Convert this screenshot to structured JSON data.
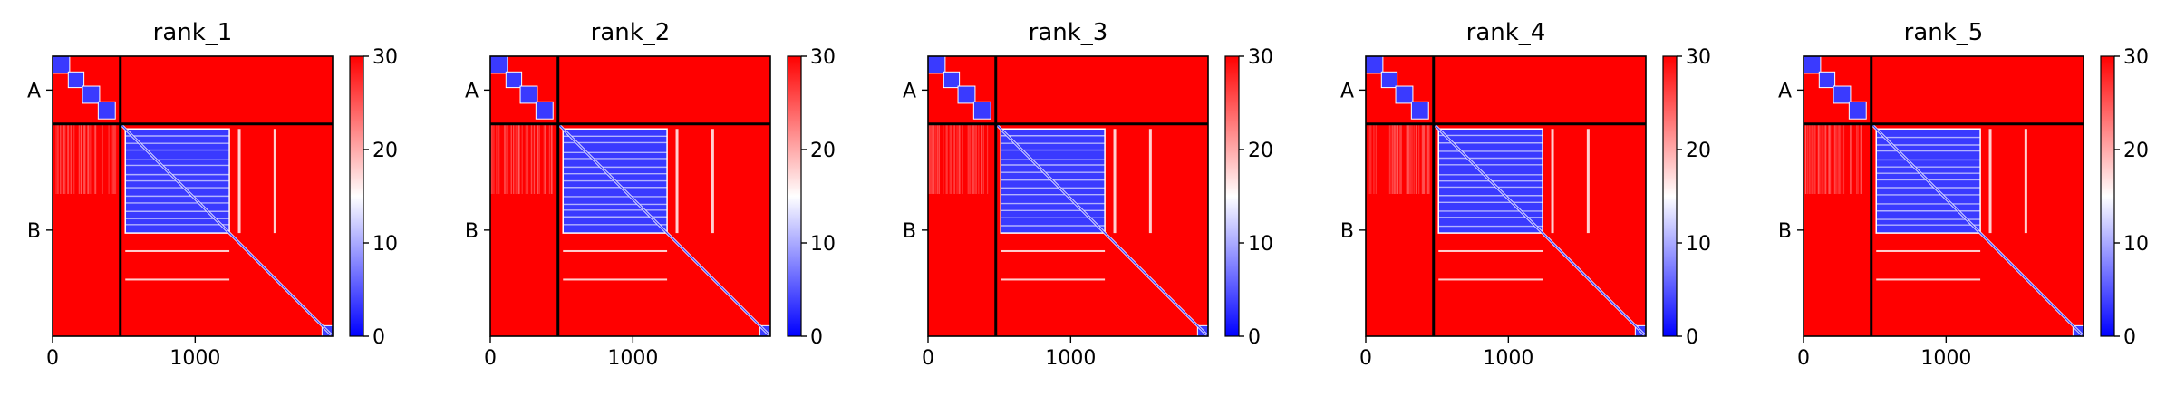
{
  "figure": {
    "colorbar": {
      "low_color": "#0000ff",
      "mid_color": "#ffffff",
      "high_color": "#ff0000",
      "range": [
        0,
        30
      ],
      "ticks": [
        0,
        10,
        20,
        30
      ]
    },
    "frame_color": "#000000",
    "divider_color": "#000000"
  },
  "chart_data": [
    {
      "type": "heatmap",
      "title": "rank_1",
      "xlabel": "",
      "ylabel": "",
      "x_ticks": [
        0,
        1000
      ],
      "xlim": [
        0,
        1964
      ],
      "y_tick_labels": [
        "A",
        "B"
      ],
      "chain_boundary": 475,
      "chains": [
        {
          "name": "A",
          "start": 0,
          "end": 475
        },
        {
          "name": "B",
          "start": 475,
          "end": 1964
        }
      ],
      "colorbar_ticks": [
        0,
        10,
        20,
        30
      ],
      "value_range": [
        0,
        30
      ],
      "colormap": "bwr",
      "low_error_blocks": [
        {
          "start": 0,
          "end": 120
        },
        {
          "start": 110,
          "end": 220
        },
        {
          "start": 210,
          "end": 330
        },
        {
          "start": 320,
          "end": 440
        },
        {
          "start": 510,
          "end": 1240
        },
        {
          "start": 1890,
          "end": 1964
        }
      ],
      "diagonal_band": [
        475,
        1964
      ],
      "background_value": 30
    },
    {
      "type": "heatmap",
      "title": "rank_2",
      "xlabel": "",
      "ylabel": "",
      "x_ticks": [
        0,
        1000
      ],
      "xlim": [
        0,
        1964
      ],
      "y_tick_labels": [
        "A",
        "B"
      ],
      "chain_boundary": 475,
      "chains": [
        {
          "name": "A",
          "start": 0,
          "end": 475
        },
        {
          "name": "B",
          "start": 475,
          "end": 1964
        }
      ],
      "colorbar_ticks": [
        0,
        10,
        20,
        30
      ],
      "value_range": [
        0,
        30
      ],
      "colormap": "bwr",
      "low_error_blocks": [
        {
          "start": 0,
          "end": 120
        },
        {
          "start": 110,
          "end": 220
        },
        {
          "start": 210,
          "end": 330
        },
        {
          "start": 320,
          "end": 440
        },
        {
          "start": 510,
          "end": 1240
        },
        {
          "start": 1890,
          "end": 1964
        }
      ],
      "diagonal_band": [
        475,
        1964
      ],
      "background_value": 30
    },
    {
      "type": "heatmap",
      "title": "rank_3",
      "xlabel": "",
      "ylabel": "",
      "x_ticks": [
        0,
        1000
      ],
      "xlim": [
        0,
        1964
      ],
      "y_tick_labels": [
        "A",
        "B"
      ],
      "chain_boundary": 475,
      "chains": [
        {
          "name": "A",
          "start": 0,
          "end": 475
        },
        {
          "name": "B",
          "start": 475,
          "end": 1964
        }
      ],
      "colorbar_ticks": [
        0,
        10,
        20,
        30
      ],
      "value_range": [
        0,
        30
      ],
      "colormap": "bwr",
      "low_error_blocks": [
        {
          "start": 0,
          "end": 120
        },
        {
          "start": 110,
          "end": 220
        },
        {
          "start": 210,
          "end": 330
        },
        {
          "start": 320,
          "end": 440
        },
        {
          "start": 510,
          "end": 1240
        },
        {
          "start": 1890,
          "end": 1964
        }
      ],
      "diagonal_band": [
        475,
        1964
      ],
      "background_value": 30
    },
    {
      "type": "heatmap",
      "title": "rank_4",
      "xlabel": "",
      "ylabel": "",
      "x_ticks": [
        0,
        1000
      ],
      "xlim": [
        0,
        1964
      ],
      "y_tick_labels": [
        "A",
        "B"
      ],
      "chain_boundary": 475,
      "chains": [
        {
          "name": "A",
          "start": 0,
          "end": 475
        },
        {
          "name": "B",
          "start": 475,
          "end": 1964
        }
      ],
      "colorbar_ticks": [
        0,
        10,
        20,
        30
      ],
      "value_range": [
        0,
        30
      ],
      "colormap": "bwr",
      "low_error_blocks": [
        {
          "start": 0,
          "end": 120
        },
        {
          "start": 110,
          "end": 220
        },
        {
          "start": 210,
          "end": 330
        },
        {
          "start": 320,
          "end": 440
        },
        {
          "start": 510,
          "end": 1240
        },
        {
          "start": 1890,
          "end": 1964
        }
      ],
      "diagonal_band": [
        475,
        1964
      ],
      "background_value": 30
    },
    {
      "type": "heatmap",
      "title": "rank_5",
      "xlabel": "",
      "ylabel": "",
      "x_ticks": [
        0,
        1000
      ],
      "xlim": [
        0,
        1964
      ],
      "y_tick_labels": [
        "A",
        "B"
      ],
      "chain_boundary": 475,
      "chains": [
        {
          "name": "A",
          "start": 0,
          "end": 475
        },
        {
          "name": "B",
          "start": 475,
          "end": 1964
        }
      ],
      "colorbar_ticks": [
        0,
        10,
        20,
        30
      ],
      "value_range": [
        0,
        30
      ],
      "colormap": "bwr",
      "low_error_blocks": [
        {
          "start": 0,
          "end": 120
        },
        {
          "start": 110,
          "end": 220
        },
        {
          "start": 210,
          "end": 330
        },
        {
          "start": 320,
          "end": 440
        },
        {
          "start": 510,
          "end": 1240
        },
        {
          "start": 1890,
          "end": 1964
        }
      ],
      "diagonal_band": [
        475,
        1964
      ],
      "background_value": 30
    }
  ]
}
